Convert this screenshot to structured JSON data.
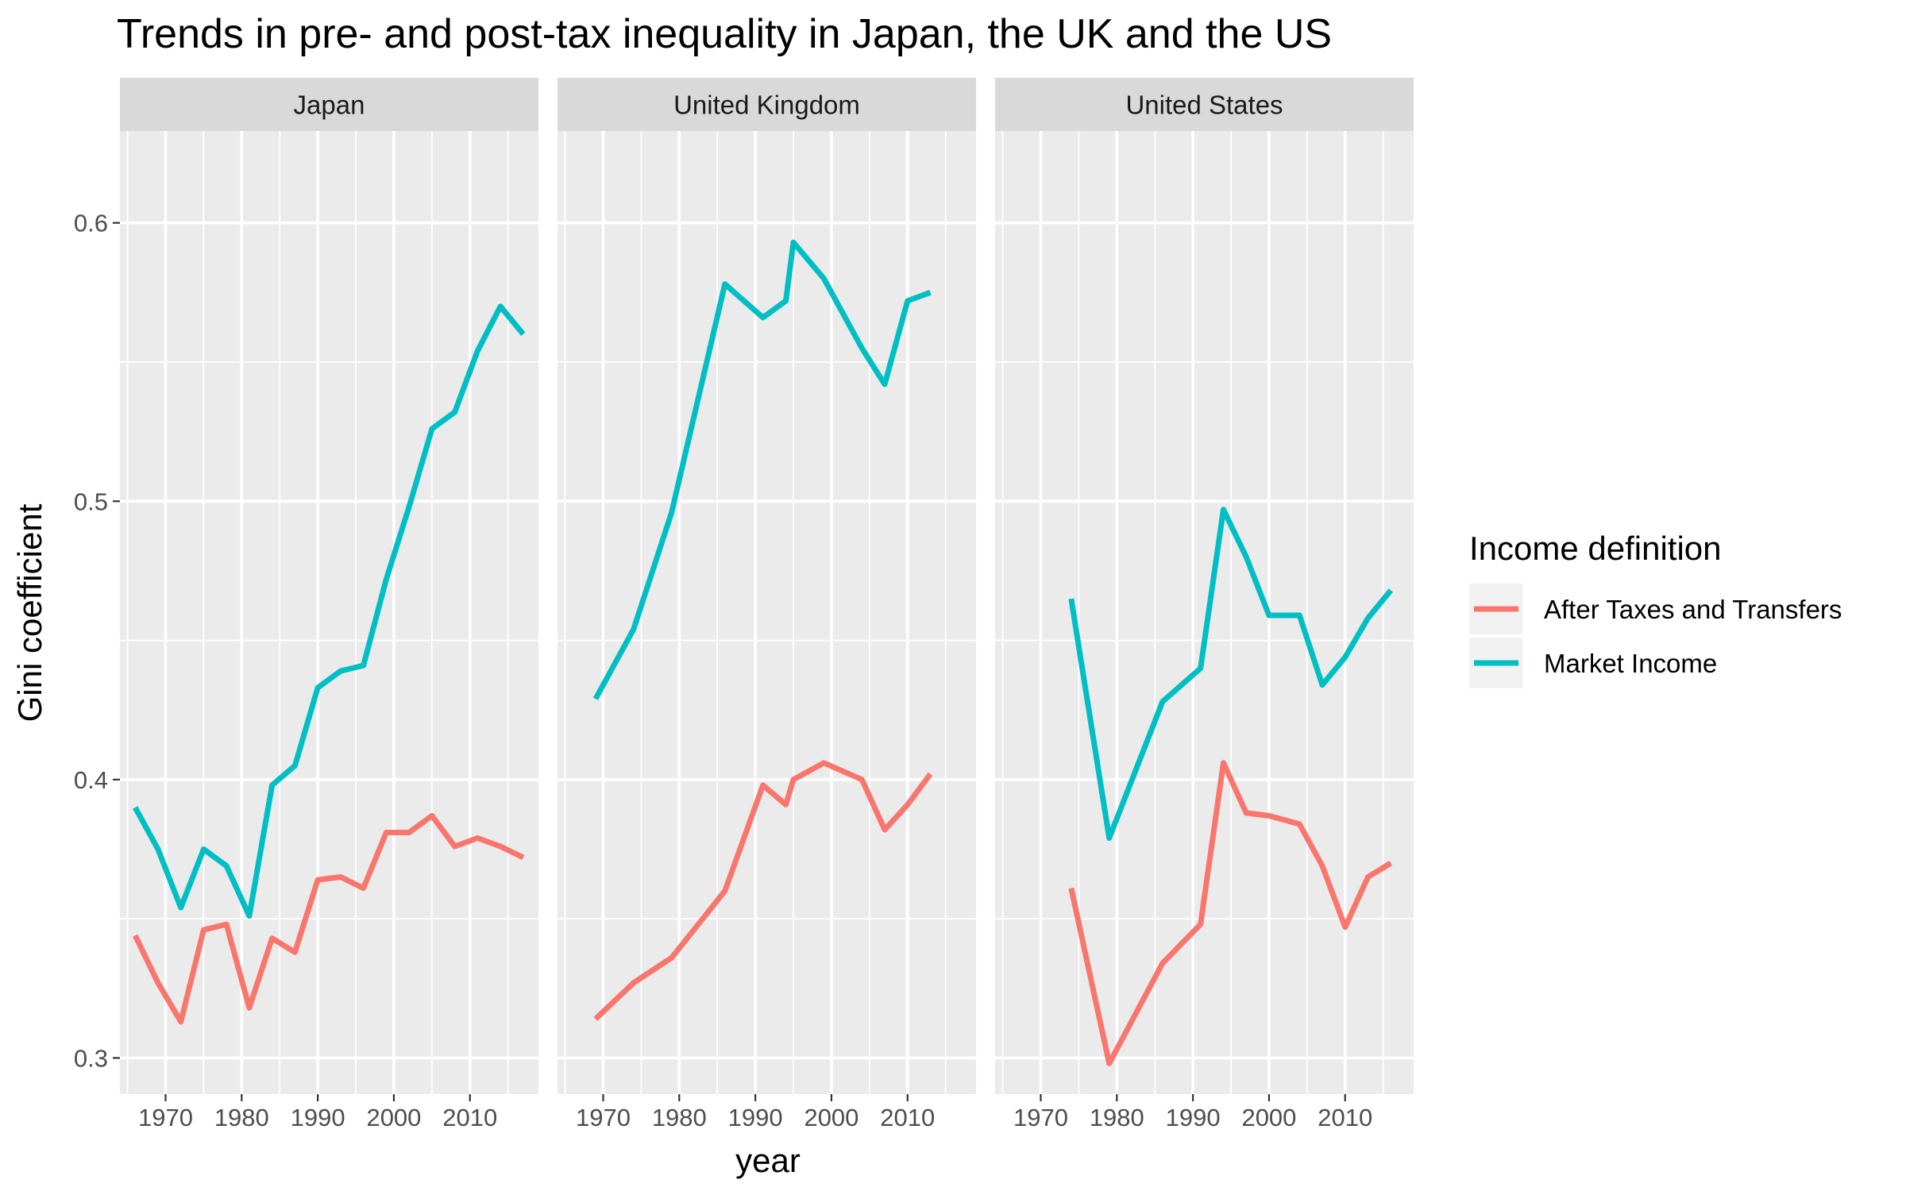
{
  "chart_data": {
    "type": "line",
    "title": "Trends in pre- and post-tax inequality in Japan, the UK and the US",
    "xlabel": "year",
    "ylabel": "Gini coefficient",
    "xlim": [
      1964,
      2019
    ],
    "ylim": [
      0.287,
      0.633
    ],
    "x_ticks": [
      1970,
      1980,
      1990,
      2000,
      2010
    ],
    "y_ticks": [
      0.3,
      0.4,
      0.5,
      0.6
    ],
    "grid": true,
    "legend": {
      "title": "Income definition",
      "position": "right",
      "entries": [
        {
          "name": "After Taxes and Transfers",
          "color": "#F8766D"
        },
        {
          "name": "Market Income",
          "color": "#00BFC4"
        }
      ]
    },
    "panels": [
      {
        "name": "Japan",
        "series": [
          {
            "name": "After Taxes and Transfers",
            "color": "#F8766D",
            "points": [
              [
                1966,
                0.344
              ],
              [
                1969,
                0.327
              ],
              [
                1972,
                0.313
              ],
              [
                1975,
                0.346
              ],
              [
                1978,
                0.348
              ],
              [
                1981,
                0.318
              ],
              [
                1984,
                0.343
              ],
              [
                1987,
                0.338
              ],
              [
                1990,
                0.364
              ],
              [
                1993,
                0.365
              ],
              [
                1996,
                0.361
              ],
              [
                1999,
                0.381
              ],
              [
                2002,
                0.381
              ],
              [
                2005,
                0.387
              ],
              [
                2008,
                0.376
              ],
              [
                2011,
                0.379
              ],
              [
                2014,
                0.376
              ],
              [
                2017,
                0.372
              ]
            ]
          },
          {
            "name": "Market Income",
            "color": "#00BFC4",
            "points": [
              [
                1966,
                0.39
              ],
              [
                1969,
                0.375
              ],
              [
                1972,
                0.354
              ],
              [
                1975,
                0.375
              ],
              [
                1978,
                0.369
              ],
              [
                1981,
                0.351
              ],
              [
                1984,
                0.398
              ],
              [
                1987,
                0.405
              ],
              [
                1990,
                0.433
              ],
              [
                1993,
                0.439
              ],
              [
                1996,
                0.441
              ],
              [
                1999,
                0.472
              ],
              [
                2002,
                0.498
              ],
              [
                2005,
                0.526
              ],
              [
                2008,
                0.532
              ],
              [
                2011,
                0.554
              ],
              [
                2014,
                0.57
              ],
              [
                2017,
                0.56
              ]
            ]
          }
        ]
      },
      {
        "name": "United Kingdom",
        "series": [
          {
            "name": "After Taxes and Transfers",
            "color": "#F8766D",
            "points": [
              [
                1969,
                0.314
              ],
              [
                1974,
                0.327
              ],
              [
                1979,
                0.336
              ],
              [
                1986,
                0.36
              ],
              [
                1991,
                0.398
              ],
              [
                1994,
                0.391
              ],
              [
                1995,
                0.4
              ],
              [
                1999,
                0.406
              ],
              [
                2004,
                0.4
              ],
              [
                2007,
                0.382
              ],
              [
                2010,
                0.391
              ],
              [
                2013,
                0.402
              ]
            ]
          },
          {
            "name": "Market Income",
            "color": "#00BFC4",
            "points": [
              [
                1969,
                0.429
              ],
              [
                1974,
                0.454
              ],
              [
                1979,
                0.496
              ],
              [
                1986,
                0.578
              ],
              [
                1991,
                0.566
              ],
              [
                1994,
                0.572
              ],
              [
                1995,
                0.593
              ],
              [
                1999,
                0.58
              ],
              [
                2004,
                0.555
              ],
              [
                2007,
                0.542
              ],
              [
                2010,
                0.572
              ],
              [
                2013,
                0.575
              ]
            ]
          }
        ]
      },
      {
        "name": "United States",
        "series": [
          {
            "name": "After Taxes and Transfers",
            "color": "#F8766D",
            "points": [
              [
                1974,
                0.361
              ],
              [
                1979,
                0.298
              ],
              [
                1986,
                0.334
              ],
              [
                1991,
                0.348
              ],
              [
                1994,
                0.406
              ],
              [
                1997,
                0.388
              ],
              [
                2000,
                0.387
              ],
              [
                2004,
                0.384
              ],
              [
                2007,
                0.369
              ],
              [
                2010,
                0.347
              ],
              [
                2013,
                0.365
              ],
              [
                2016,
                0.37
              ]
            ]
          },
          {
            "name": "Market Income",
            "color": "#00BFC4",
            "points": [
              [
                1974,
                0.465
              ],
              [
                1979,
                0.379
              ],
              [
                1986,
                0.428
              ],
              [
                1991,
                0.44
              ],
              [
                1994,
                0.497
              ],
              [
                1997,
                0.48
              ],
              [
                2000,
                0.459
              ],
              [
                2004,
                0.459
              ],
              [
                2007,
                0.434
              ],
              [
                2010,
                0.444
              ],
              [
                2013,
                0.458
              ],
              [
                2016,
                0.468
              ]
            ]
          }
        ]
      }
    ]
  }
}
